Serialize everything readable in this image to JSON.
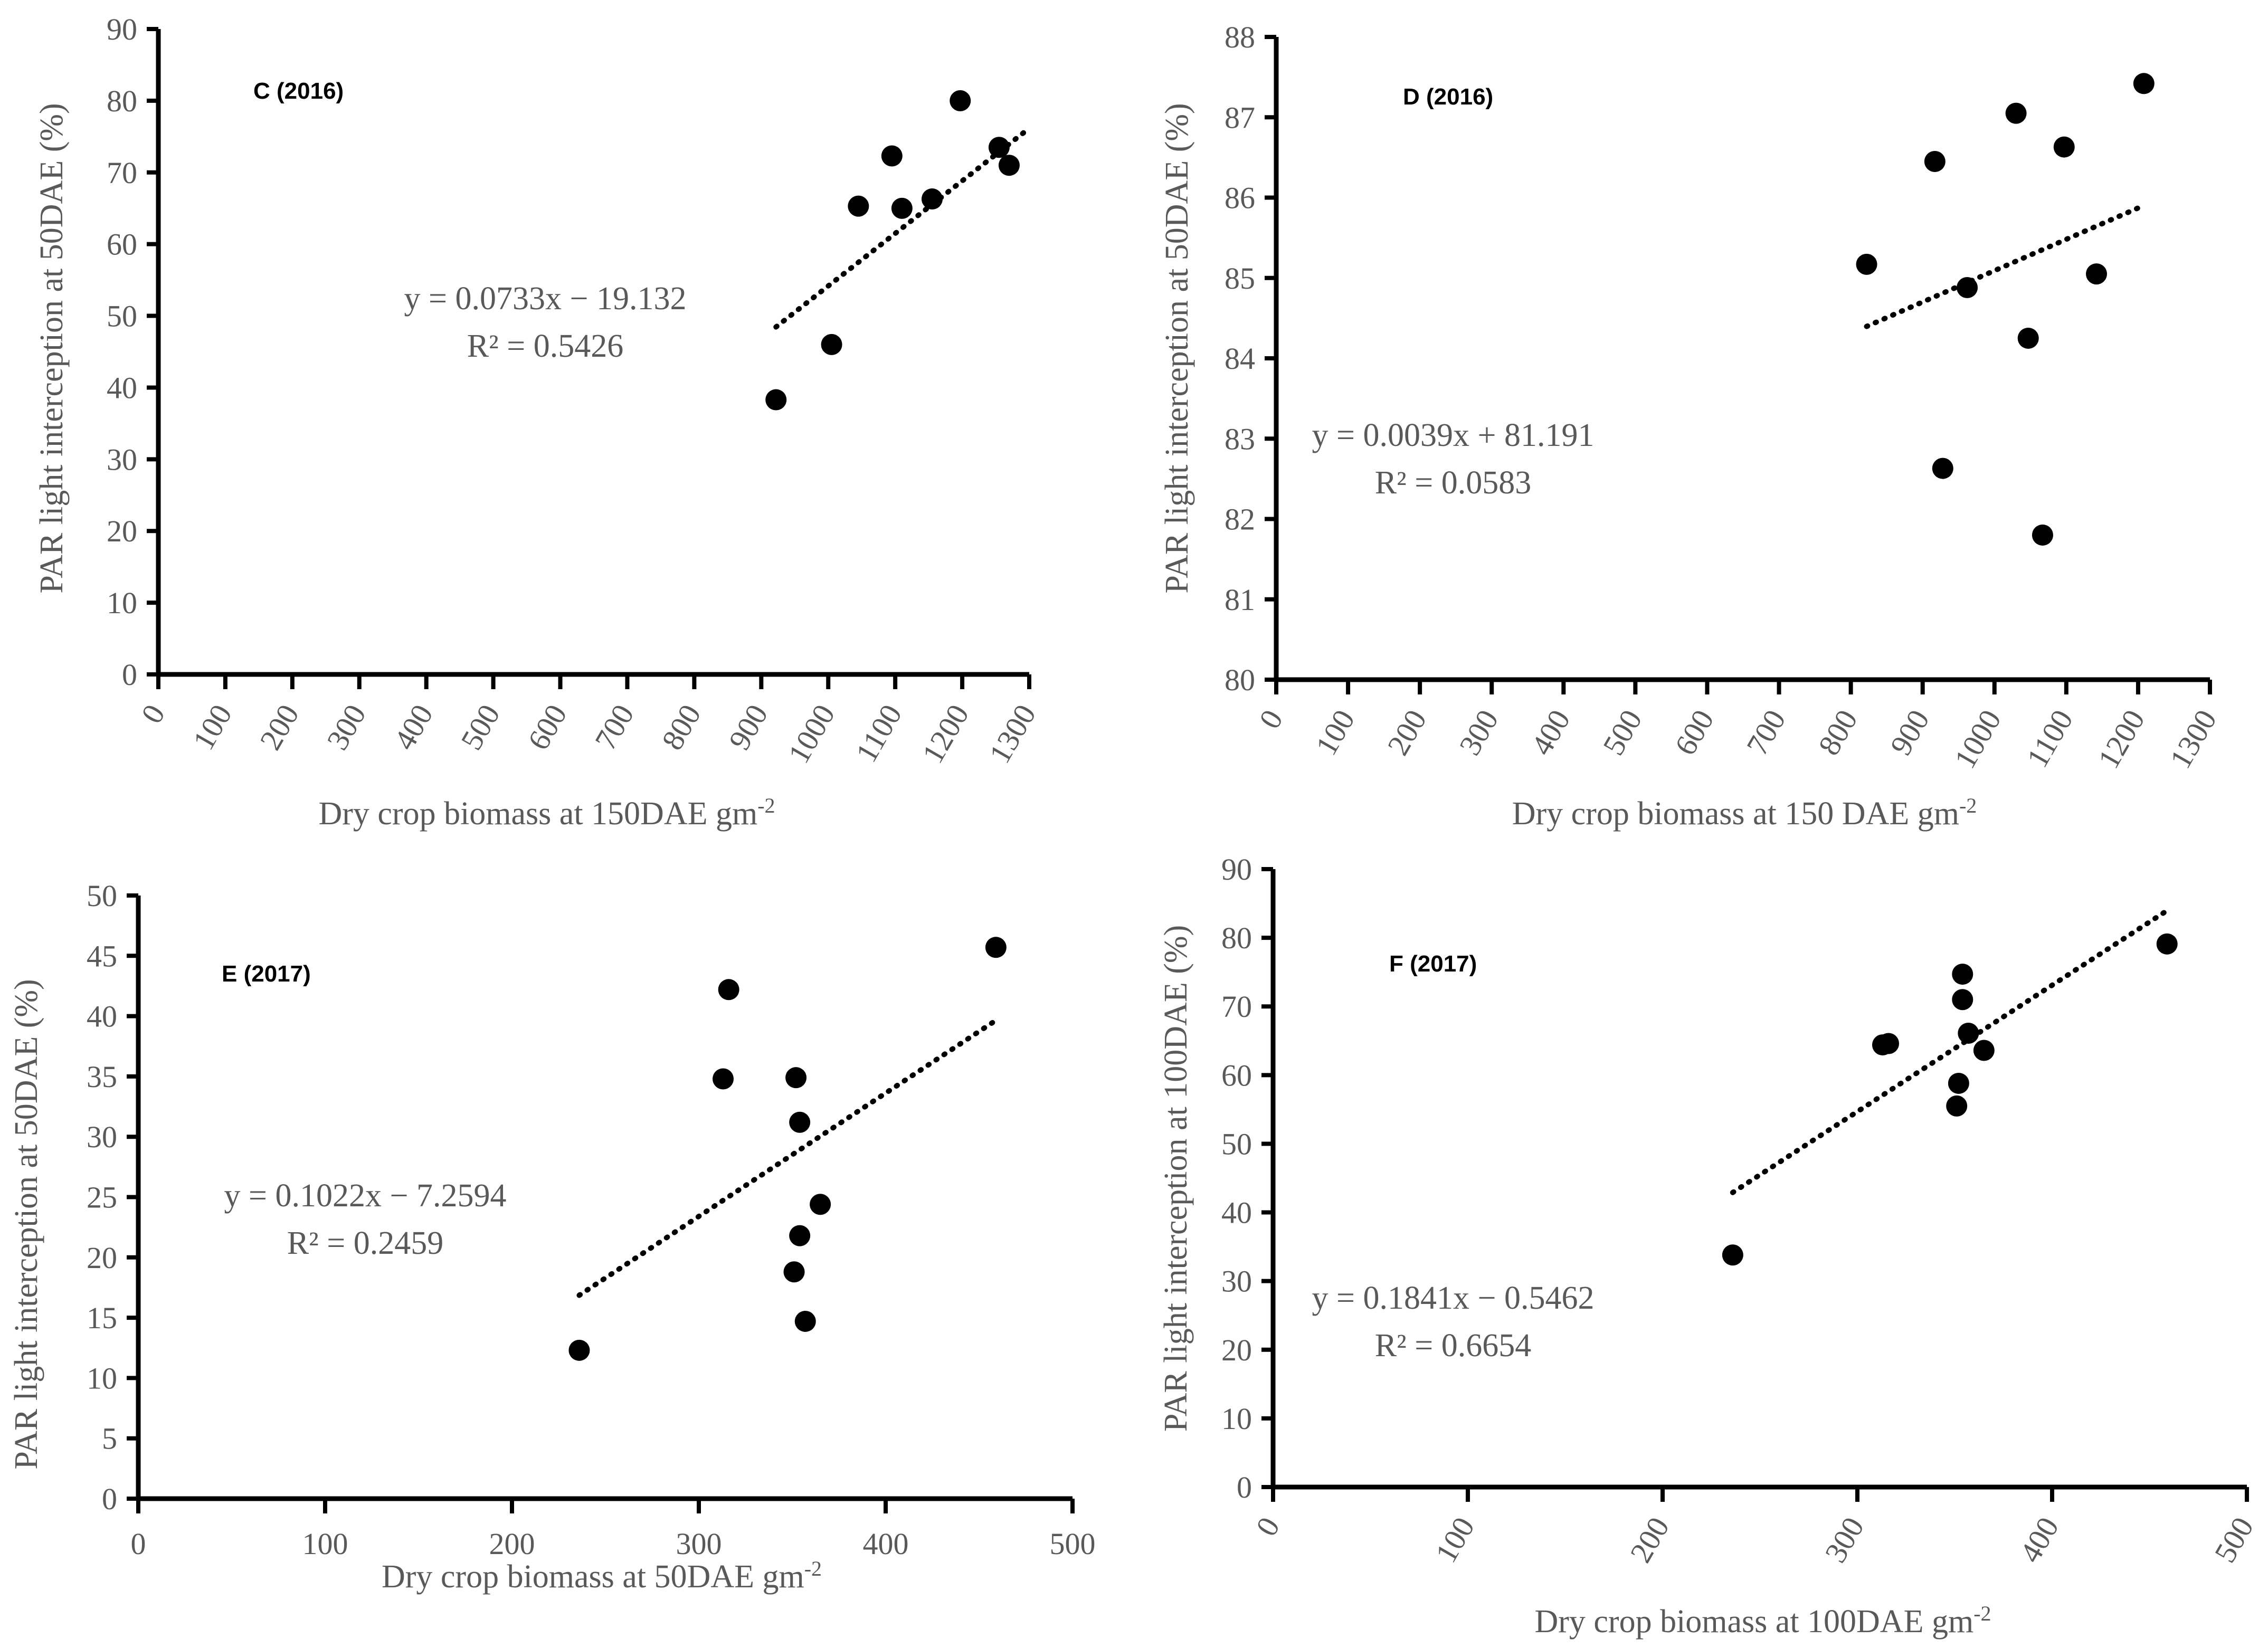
{
  "colors": {
    "axis": "#000000",
    "text": "#595959",
    "point": "#000000"
  },
  "chart_data": [
    {
      "type": "scatter",
      "title": "C (2016)",
      "xlabel": "Dry crop biomass at 150DAE gm",
      "xlabel_sup": "-2",
      "ylabel": "PAR light interception at 50DAE (%)",
      "xlim": [
        0,
        1300
      ],
      "ylim": [
        0,
        90
      ],
      "xticks": [
        "0",
        "100",
        "200",
        "300",
        "400",
        "500",
        "600",
        "700",
        "800",
        "900",
        "1000",
        "1100",
        "1200",
        "1300"
      ],
      "yticks": [
        "0",
        "10",
        "20",
        "30",
        "40",
        "50",
        "60",
        "70",
        "80",
        "90"
      ],
      "x": [
        922,
        1005,
        1045,
        1095,
        1110,
        1155,
        1197,
        1255,
        1270
      ],
      "y": [
        38.3,
        46.0,
        65.3,
        72.3,
        65.0,
        66.3,
        80.0,
        73.5,
        71.0
      ],
      "trendline": {
        "slope": 0.0733,
        "intercept": -19.132,
        "x_range": [
          922,
          1300
        ]
      },
      "equation": "y = 0.0733x − 19.132",
      "r2": "R² = 0.5426"
    },
    {
      "type": "scatter",
      "title": "D (2016)",
      "xlabel": "Dry crop biomass at 150 DAE gm",
      "xlabel_sup": "-2",
      "ylabel": "PAR light interception at 50DAE (%)",
      "xlim": [
        0,
        1300
      ],
      "ylim": [
        80,
        88
      ],
      "xticks": [
        "0",
        "100",
        "200",
        "300",
        "400",
        "500",
        "600",
        "700",
        "800",
        "900",
        "1000",
        "1100",
        "1200",
        "1300"
      ],
      "yticks": [
        "80",
        "81",
        "82",
        "83",
        "84",
        "85",
        "86",
        "87",
        "88"
      ],
      "x": [
        822,
        917,
        928,
        962,
        1030,
        1047,
        1067,
        1097,
        1142,
        1208
      ],
      "y": [
        85.17,
        86.45,
        82.63,
        84.88,
        87.05,
        84.25,
        81.8,
        86.63,
        85.05,
        87.42
      ],
      "trendline": {
        "slope": 0.0039,
        "intercept": 81.191,
        "x_range": [
          822,
          1200
        ]
      },
      "equation": "y = 0.0039x + 81.191",
      "r2": "R² = 0.0583"
    },
    {
      "type": "scatter",
      "title": "E (2017)",
      "xlabel": "Dry crop biomass at 50DAE gm",
      "xlabel_sup": "-2",
      "ylabel": "PAR light interception at 50DAE (%)",
      "xlim": [
        0,
        500
      ],
      "ylim": [
        0,
        50
      ],
      "xticks": [
        "0",
        "100",
        "200",
        "300",
        "400",
        "500"
      ],
      "yticks": [
        "0",
        "5",
        "10",
        "15",
        "20",
        "25",
        "30",
        "35",
        "40",
        "45",
        "50"
      ],
      "x": [
        236,
        313,
        316,
        351,
        352,
        354,
        354,
        357,
        365,
        459
      ],
      "y": [
        12.3,
        34.8,
        42.2,
        18.8,
        34.9,
        31.2,
        21.8,
        14.7,
        24.4,
        45.7
      ],
      "trendline": {
        "slope": 0.1022,
        "intercept": -7.2594,
        "x_range": [
          236,
          459
        ]
      },
      "equation": "y = 0.1022x − 7.2594",
      "r2": "R² = 0.2459"
    },
    {
      "type": "scatter",
      "title": "F (2017)",
      "xlabel": "Dry crop biomass at 100DAE gm",
      "xlabel_sup": "-2",
      "ylabel": "PAR light interception at 100DAE (%)",
      "xlim": [
        0,
        500
      ],
      "ylim": [
        0,
        90
      ],
      "xticks": [
        "0",
        "100",
        "200",
        "300",
        "400",
        "500"
      ],
      "yticks": [
        "0",
        "10",
        "20",
        "30",
        "40",
        "50",
        "60",
        "70",
        "80",
        "90"
      ],
      "x": [
        236,
        313,
        316,
        351,
        352,
        354,
        354,
        357,
        365,
        459
      ],
      "y": [
        33.8,
        64.4,
        64.6,
        55.5,
        58.8,
        74.7,
        71.0,
        66.1,
        63.6,
        79.1
      ],
      "trendline": {
        "slope": 0.1841,
        "intercept": -0.5462,
        "x_range": [
          236,
          459
        ]
      },
      "equation": "y = 0.1841x − 0.5462",
      "r2": "R² = 0.6654"
    }
  ]
}
